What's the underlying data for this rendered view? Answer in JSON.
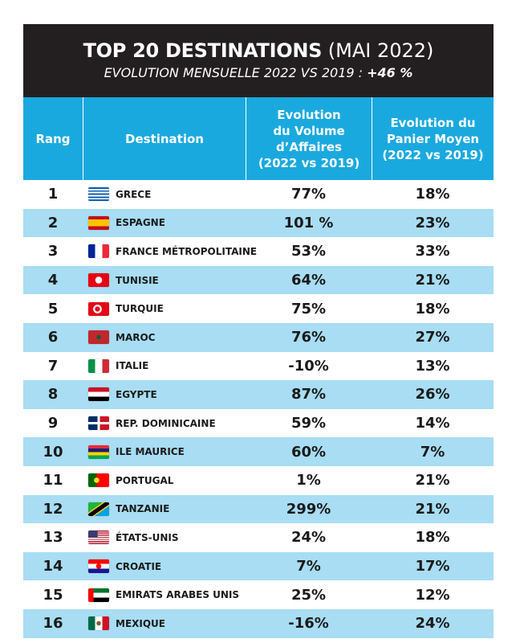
{
  "header": {
    "title_bold": "TOP 20 DESTINATIONS",
    "title_light": "(MAI 2022)",
    "subtitle_text": "EVOLUTION MENSUELLE 2022 VS 2019 :",
    "subtitle_value": "+46 %"
  },
  "columns": {
    "rank": "Rang",
    "destination": "Destination",
    "volume": [
      "Evolution",
      "du Volume",
      "d’Affaires",
      "(2022 vs 2019)"
    ],
    "panier": [
      "Evolution du",
      "Panier Moyen",
      "(2022 vs 2019)"
    ]
  },
  "colors": {
    "banner": "#231f20",
    "header_blue": "#1aa9de",
    "row_alt": "#a8ddf3"
  },
  "rows": [
    {
      "rank": "1",
      "destination": "GRECE",
      "flag": "greece-flag-icon",
      "volume": "77%",
      "panier": "18%"
    },
    {
      "rank": "2",
      "destination": "ESPAGNE",
      "flag": "spain-flag-icon",
      "volume": "101 %",
      "panier": "23%"
    },
    {
      "rank": "3",
      "destination": "FRANCE MÉTROPOLITAINE",
      "flag": "france-flag-icon",
      "volume": "53%",
      "panier": "33%"
    },
    {
      "rank": "4",
      "destination": "TUNISIE",
      "flag": "tunisia-flag-icon",
      "volume": "64%",
      "panier": "21%"
    },
    {
      "rank": "5",
      "destination": "TURQUIE",
      "flag": "turkey-flag-icon",
      "volume": "75%",
      "panier": "18%"
    },
    {
      "rank": "6",
      "destination": "MAROC",
      "flag": "morocco-flag-icon",
      "volume": "76%",
      "panier": "27%"
    },
    {
      "rank": "7",
      "destination": "ITALIE",
      "flag": "italy-flag-icon",
      "volume": "-10%",
      "panier": "13%"
    },
    {
      "rank": "8",
      "destination": "EGYPTE",
      "flag": "egypt-flag-icon",
      "volume": "87%",
      "panier": "26%"
    },
    {
      "rank": "9",
      "destination": "REP. DOMINICAINE",
      "flag": "dominican-flag-icon",
      "volume": "59%",
      "panier": "14%"
    },
    {
      "rank": "10",
      "destination": "ILE MAURICE",
      "flag": "mauritius-flag-icon",
      "volume": "60%",
      "panier": "7%"
    },
    {
      "rank": "11",
      "destination": "PORTUGAL",
      "flag": "portugal-flag-icon",
      "volume": "1%",
      "panier": "21%"
    },
    {
      "rank": "12",
      "destination": "TANZANIE",
      "flag": "tanzania-flag-icon",
      "volume": "299%",
      "panier": "21%"
    },
    {
      "rank": "13",
      "destination": "ÉTATS-UNIS",
      "flag": "usa-flag-icon",
      "volume": "24%",
      "panier": "18%"
    },
    {
      "rank": "14",
      "destination": "CROATIE",
      "flag": "croatia-flag-icon",
      "volume": "7%",
      "panier": "17%"
    },
    {
      "rank": "15",
      "destination": "EMIRATS ARABES UNIS",
      "flag": "uae-flag-icon",
      "volume": "25%",
      "panier": "12%"
    },
    {
      "rank": "16",
      "destination": "MEXIQUE",
      "flag": "mexico-flag-icon",
      "volume": "-16%",
      "panier": "24%"
    }
  ]
}
